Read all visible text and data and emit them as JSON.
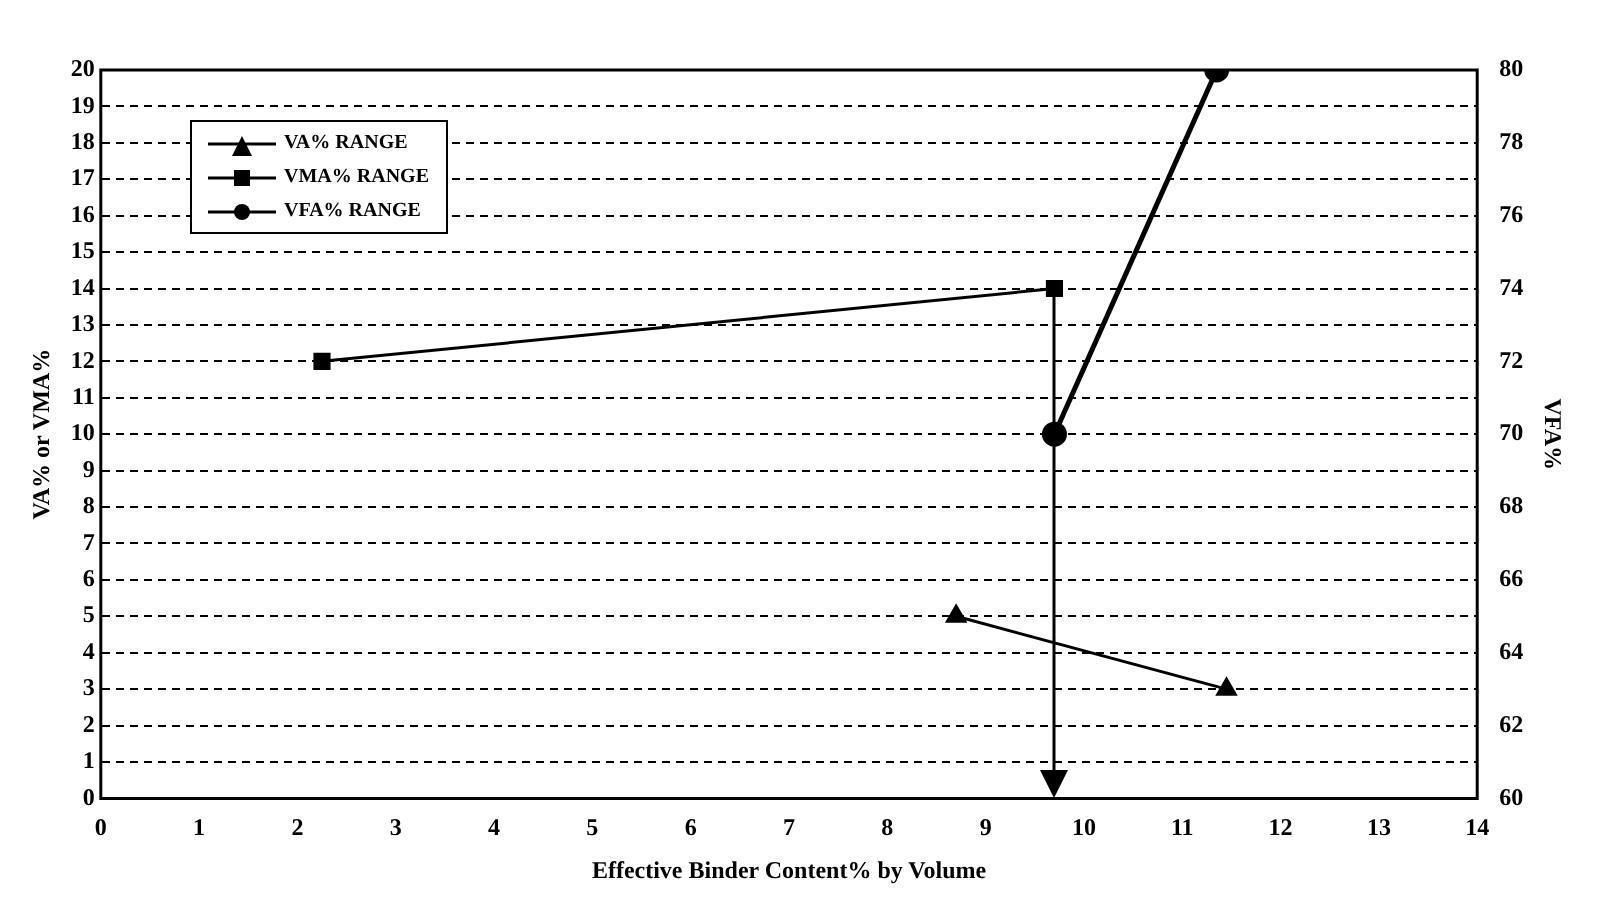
{
  "chart_data": {
    "type": "line",
    "xlabel": "Effective Binder Content% by Volume",
    "ylabel": "VA% or VMA%",
    "y2label": "VFA%",
    "xlim": [
      0,
      14
    ],
    "xticks": [
      0,
      1,
      2,
      3,
      4,
      5,
      6,
      7,
      8,
      9,
      10,
      11,
      12,
      13,
      14
    ],
    "ylim": [
      0,
      20
    ],
    "yticks": [
      0,
      1,
      2,
      3,
      4,
      5,
      6,
      7,
      8,
      9,
      10,
      11,
      12,
      13,
      14,
      15,
      16,
      17,
      18,
      19,
      20
    ],
    "y2lim": [
      60,
      80
    ],
    "y2ticks": [
      60,
      62,
      64,
      66,
      68,
      70,
      72,
      74,
      76,
      78,
      80
    ],
    "grid": "y",
    "legend": "top left",
    "line_style": "solid",
    "ref_lines": [
      {
        "axis": "x",
        "value": 9.7,
        "color": "#000000"
      }
    ],
    "series": [
      {
        "name": "VA% RANGE",
        "color": "#000000",
        "marker": "triangle",
        "x": [
          8.7,
          11.45
        ],
        "values": [
          5,
          3
        ]
      },
      {
        "name": "VMA% RANGE",
        "color": "#000000",
        "marker": "square",
        "x": [
          2.25,
          9.7
        ],
        "values": [
          12,
          14
        ]
      },
      {
        "name": "VFA% RANGE",
        "color": "#000000",
        "marker": "circle",
        "axis": "y2",
        "x": [
          9.7,
          11.35
        ],
        "values": [
          70,
          80
        ]
      }
    ]
  }
}
